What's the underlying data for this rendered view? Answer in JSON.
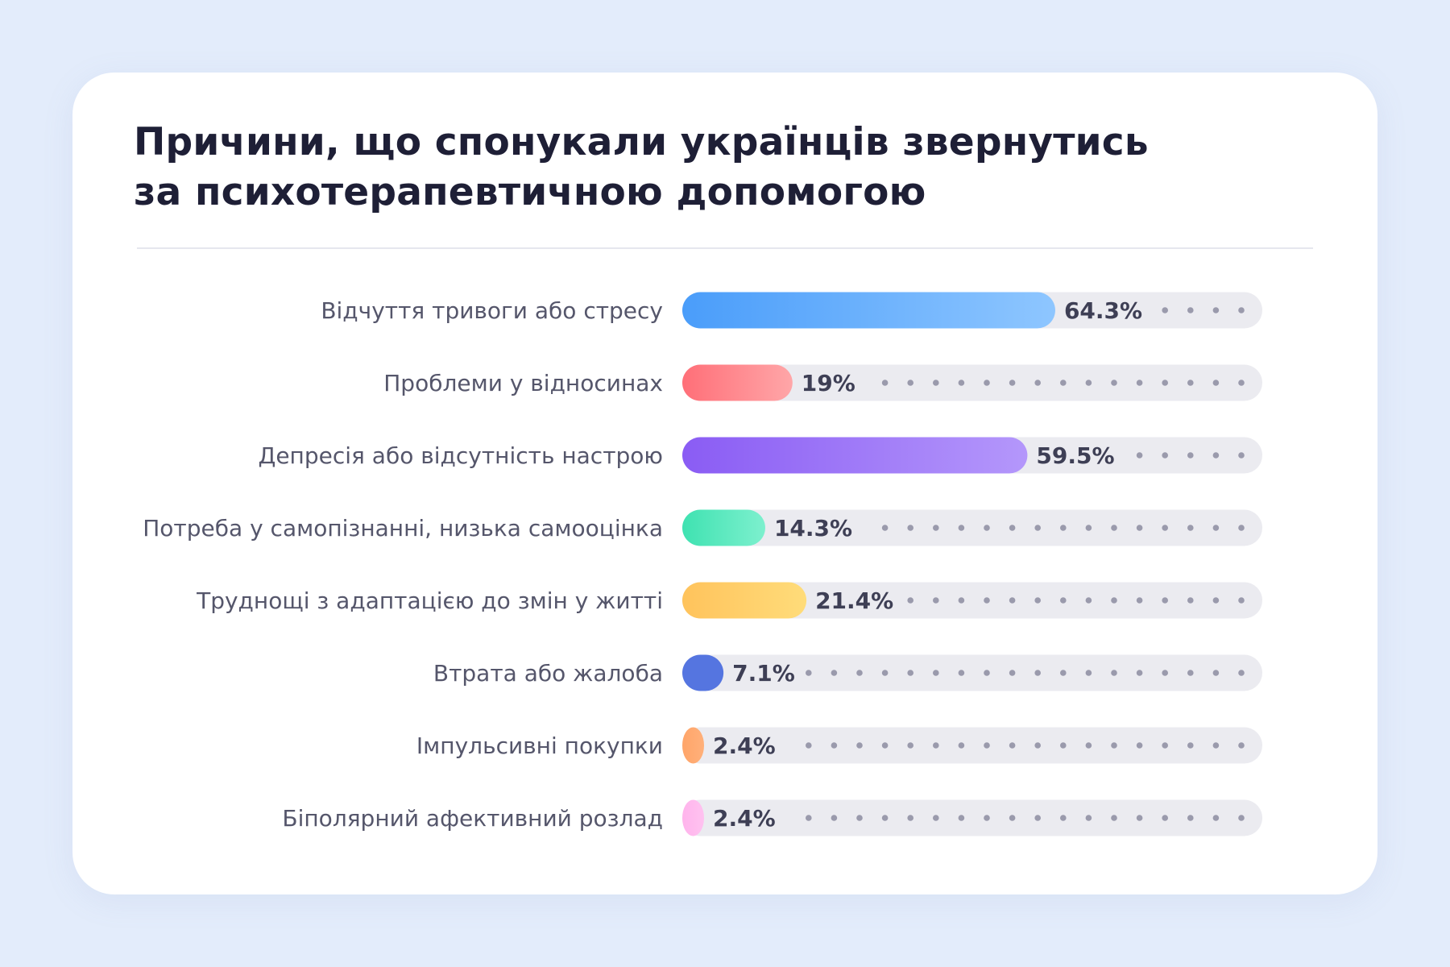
{
  "title_line1": "Причини, що спонукали українців звернутись",
  "title_line2": "за психотерапевтичною допомогою",
  "colors": {
    "background": "#e3ecfb",
    "card": "#ffffff",
    "track": "#ebebf0",
    "dot": "#9a9aac"
  },
  "chart_data": {
    "type": "bar",
    "orientation": "horizontal",
    "title": "Причини, що спонукали українців звернутись за психотерапевтичною допомогою",
    "xlim": [
      0,
      100
    ],
    "categories": [
      "Відчуття тривоги або стресу",
      "Проблеми у відносинах",
      "Депресія або відсутність настрою",
      "Потреба у самопізнанні, низька самооцінка",
      "Труднощі з адаптацією до змін у житті",
      "Втрата або жалоба",
      "Імпульсивні покупки",
      "Біполярний афективний розлад"
    ],
    "values": [
      64.3,
      19,
      59.5,
      14.3,
      21.4,
      7.1,
      2.4,
      2.4
    ],
    "value_labels": [
      "64.3%",
      "19%",
      "59.5%",
      "14.3%",
      "21.4%",
      "7.1%",
      "2.4%",
      "2.4%"
    ],
    "bar_colors": [
      [
        "#4a9dfa",
        "#8ec6ff"
      ],
      [
        "#ff6f78",
        "#ffa6a8"
      ],
      [
        "#8a5cf4",
        "#b497fb"
      ],
      [
        "#3fe2b1",
        "#7df0ce"
      ],
      [
        "#ffc35c",
        "#ffdc7a"
      ],
      [
        "#5575e0",
        "#5575e0"
      ],
      [
        "#ffa569",
        "#ffb07a"
      ],
      [
        "#ffb4ec",
        "#ffc2f0"
      ]
    ],
    "legend": "none",
    "grid": false
  }
}
